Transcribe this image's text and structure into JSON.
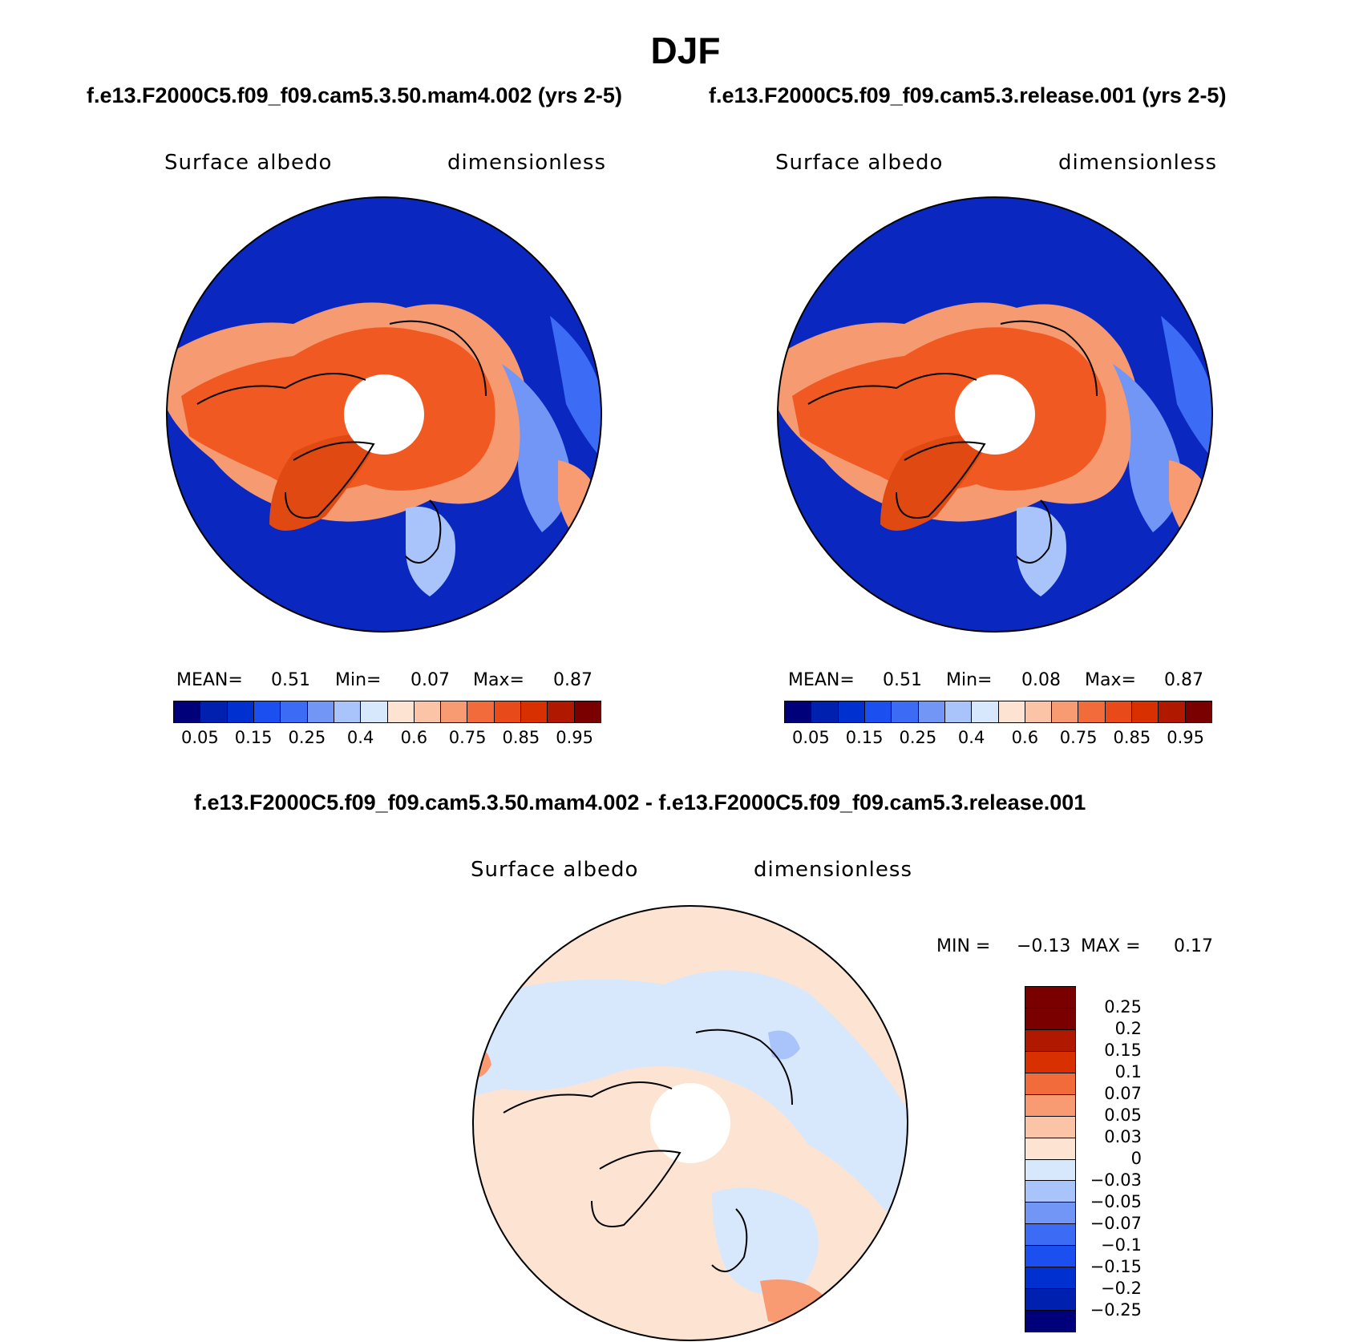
{
  "season": "DJF",
  "panels": {
    "left": {
      "title": "f.e13.F2000C5.f09_f09.cam5.3.50.mam4.002 (yrs 2-5)",
      "variable": "Surface albedo",
      "units": "dimensionless",
      "stats": {
        "mean_label": "MEAN=",
        "mean": "0.51",
        "min_label": "Min=",
        "min": "0.07",
        "max_label": "Max=",
        "max": "0.87"
      }
    },
    "right": {
      "title": "f.e13.F2000C5.f09_f09.cam5.3.release.001 (yrs 2-5)",
      "variable": "Surface albedo",
      "units": "dimensionless",
      "stats": {
        "mean_label": "MEAN=",
        "mean": "0.51",
        "min_label": "Min=",
        "min": "0.08",
        "max_label": "Max=",
        "max": "0.87"
      }
    },
    "diff": {
      "title": "f.e13.F2000C5.f09_f09.cam5.3.50.mam4.002 - f.e13.F2000C5.f09_f09.cam5.3.release.001",
      "variable": "Surface albedo",
      "units": "dimensionless",
      "stats": {
        "min_label": "MIN =",
        "min": "−0.13",
        "max_label": "MAX =",
        "max": "0.17"
      }
    }
  },
  "colorbar_abs": {
    "colors": [
      "#00007a",
      "#0020b0",
      "#0030d0",
      "#1c4ff0",
      "#3c6cf6",
      "#7296f6",
      "#a8c4fa",
      "#d8e8fc",
      "#fde4d2",
      "#fcc4a6",
      "#f89a72",
      "#f26b3a",
      "#e84a1a",
      "#d83000",
      "#b01800",
      "#7a0000"
    ],
    "tick_labels": [
      "0.05",
      "0.15",
      "0.25",
      "0.4",
      "0.6",
      "0.75",
      "0.85",
      "0.95"
    ]
  },
  "colorbar_diff": {
    "colors": [
      "#7a0000",
      "#b01800",
      "#d83000",
      "#f26b3a",
      "#f89a72",
      "#fcc4a6",
      "#fde4d2",
      "#d8e8fc",
      "#a8c4fa",
      "#7296f6",
      "#3c6cf6",
      "#1c4ff0",
      "#0030d0",
      "#0020b0",
      "#00007a"
    ],
    "tick_labels": [
      "0.25",
      "0.2",
      "0.15",
      "0.1",
      "0.07",
      "0.05",
      "0.03",
      "0",
      "−0.03",
      "−0.05",
      "−0.07",
      "−0.1",
      "−0.15",
      "−0.2",
      "−0.25"
    ]
  },
  "map_colors": {
    "ocean_low": "#0a28c0",
    "ocean_mid": "#3a6aee",
    "land_high": "#f05a22",
    "land_mid": "#f69a72",
    "land_light": "#fcd0b4",
    "diff_pos": "#fde4d2",
    "diff_neg": "#d8e8fc",
    "diff_neg2": "#a8c4fa",
    "diff_pos2": "#f89a72",
    "pole_hole": "#ffffff",
    "coast": "#000000"
  }
}
